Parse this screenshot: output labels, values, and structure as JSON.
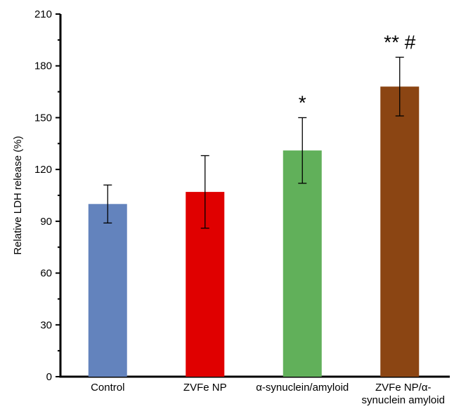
{
  "chart_data": {
    "type": "bar",
    "categories": [
      "Control",
      "ZVFe NP",
      "α-synuclein/amyloid",
      "ZVFe NP/α-synuclein amyloid"
    ],
    "category_label_lines": [
      [
        "Control"
      ],
      [
        "ZVFe NP"
      ],
      [
        "α-synuclein/amyloid"
      ],
      [
        "ZVFe NP/α-",
        "synuclein amyloid"
      ]
    ],
    "values": [
      100,
      107,
      131,
      168
    ],
    "errors": [
      11,
      21,
      19,
      17
    ],
    "annotations": [
      "",
      "",
      "*",
      "** #"
    ],
    "colors": [
      "#6383BD",
      "#E00000",
      "#61B05A",
      "#8B4513"
    ],
    "xlabel": "",
    "ylabel": "Relative LDH release (%)",
    "ylim": [
      0,
      210
    ],
    "yticks": [
      "0",
      "30",
      "60",
      "90",
      "120",
      "150",
      "180",
      "210"
    ],
    "grid": false
  }
}
